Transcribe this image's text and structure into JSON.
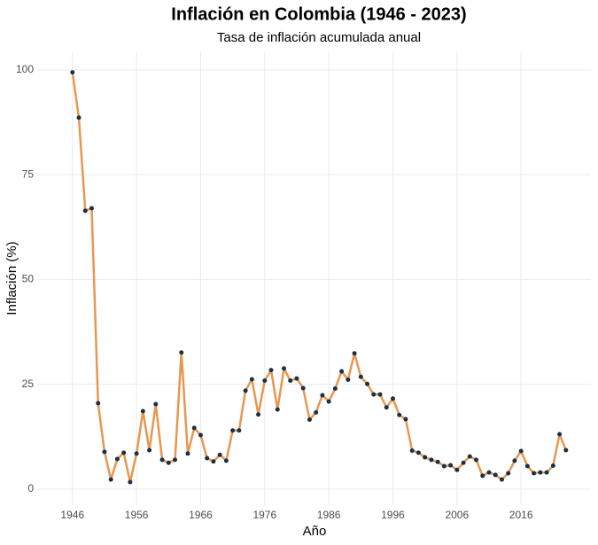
{
  "chart_data": {
    "type": "line",
    "title": "Inflación en Colombia (1946 - 2023)",
    "subtitle": "Tasa de inflación acumulada anual",
    "x_label": "Año",
    "y_label": "Inflación (%)",
    "x": [
      1946,
      1947,
      1948,
      1949,
      1950,
      1951,
      1952,
      1953,
      1954,
      1955,
      1956,
      1957,
      1958,
      1959,
      1960,
      1961,
      1962,
      1963,
      1964,
      1965,
      1966,
      1967,
      1968,
      1969,
      1970,
      1971,
      1972,
      1973,
      1974,
      1975,
      1976,
      1977,
      1978,
      1979,
      1980,
      1981,
      1982,
      1983,
      1984,
      1985,
      1986,
      1987,
      1988,
      1989,
      1990,
      1991,
      1992,
      1993,
      1994,
      1995,
      1996,
      1997,
      1998,
      1999,
      2000,
      2001,
      2002,
      2003,
      2004,
      2005,
      2006,
      2007,
      2008,
      2009,
      2010,
      2011,
      2012,
      2013,
      2014,
      2015,
      2016,
      2017,
      2018,
      2019,
      2020,
      2021,
      2022,
      2023
    ],
    "series": [
      {
        "name": "Inflación",
        "color": "#e8974f",
        "marker_color": "#1b3047",
        "values": [
          99.4,
          88.6,
          66.4,
          67.0,
          20.5,
          8.9,
          2.3,
          7.2,
          8.7,
          1.7,
          8.5,
          18.6,
          9.3,
          20.3,
          7.0,
          6.3,
          7.0,
          32.6,
          8.5,
          14.6,
          12.9,
          7.4,
          6.6,
          8.2,
          6.8,
          14.0,
          14.0,
          23.5,
          26.2,
          17.8,
          25.9,
          28.4,
          19.0,
          28.8,
          25.9,
          26.4,
          24.1,
          16.6,
          18.3,
          22.4,
          20.9,
          24.0,
          28.1,
          26.1,
          32.4,
          26.8,
          25.1,
          22.6,
          22.6,
          19.5,
          21.6,
          17.7,
          16.7,
          9.2,
          8.7,
          7.6,
          7.0,
          6.5,
          5.5,
          5.7,
          4.6,
          6.3,
          7.8,
          7.0,
          3.2,
          4.0,
          3.4,
          2.3,
          3.8,
          6.8,
          9.1,
          5.5,
          3.8,
          4.0,
          4.0,
          5.6,
          13.1,
          9.3
        ]
      }
    ],
    "xlim": [
      1940.5,
      2026.9
    ],
    "ylim": [
      -3.8,
      104.4
    ],
    "xticks": [
      1946,
      1956,
      1966,
      1976,
      1986,
      1996,
      2006,
      2016
    ],
    "yticks": [
      0,
      25,
      50,
      75,
      100
    ],
    "grid": true
  }
}
